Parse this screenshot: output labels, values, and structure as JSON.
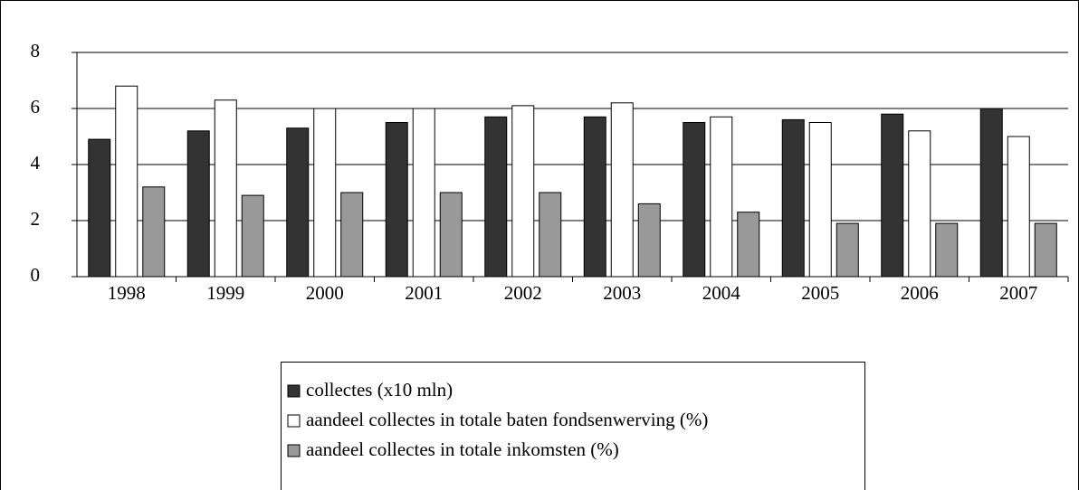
{
  "chart_data": {
    "type": "bar",
    "categories": [
      "1998",
      "1999",
      "2000",
      "2001",
      "2002",
      "2003",
      "2004",
      "2005",
      "2006",
      "2007"
    ],
    "series": [
      {
        "name": "collectes (x10 mln)",
        "color": "#333333",
        "values": [
          4.9,
          5.2,
          5.3,
          5.5,
          5.7,
          5.7,
          5.5,
          5.6,
          5.8,
          6.0
        ]
      },
      {
        "name": "aandeel collectes in totale baten fondsenwerving (%)",
        "color": "#ffffff",
        "values": [
          6.8,
          6.3,
          6.0,
          6.0,
          6.1,
          6.2,
          5.7,
          5.5,
          5.2,
          5.0
        ]
      },
      {
        "name": "aandeel collectes in totale inkomsten (%)",
        "color": "#999999",
        "values": [
          3.2,
          2.9,
          3.0,
          3.0,
          3.0,
          2.6,
          2.3,
          1.9,
          1.9,
          1.9
        ]
      }
    ],
    "ylim": [
      0,
      8
    ],
    "yticks": [
      0,
      2,
      4,
      6,
      8
    ],
    "grid": true,
    "legend": "bottom"
  }
}
